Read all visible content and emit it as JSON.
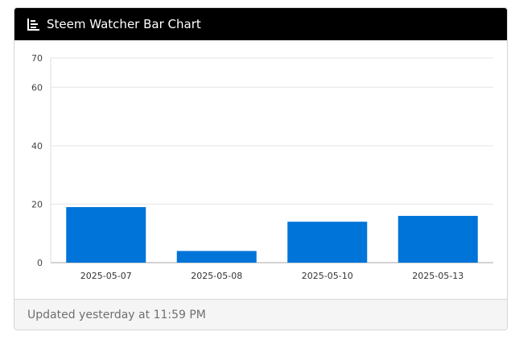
{
  "card": {
    "title": "Steem Watcher Bar Chart",
    "icon": "bar-chart-icon",
    "footer_text": "Updated yesterday at 11:59 PM"
  },
  "colors": {
    "header_bg": "#000000",
    "bar": "#0074d9",
    "footer_bg": "#f5f5f5"
  },
  "chart_data": {
    "type": "bar",
    "categories": [
      "2025-05-07",
      "2025-05-08",
      "2025-05-10",
      "2025-05-13"
    ],
    "values": [
      19,
      4,
      14,
      16
    ],
    "title": "",
    "xlabel": "",
    "ylabel": "",
    "ylim": [
      0,
      70
    ],
    "yticks": [
      0,
      20,
      40,
      60,
      70
    ],
    "grid": true,
    "legend": "none"
  }
}
